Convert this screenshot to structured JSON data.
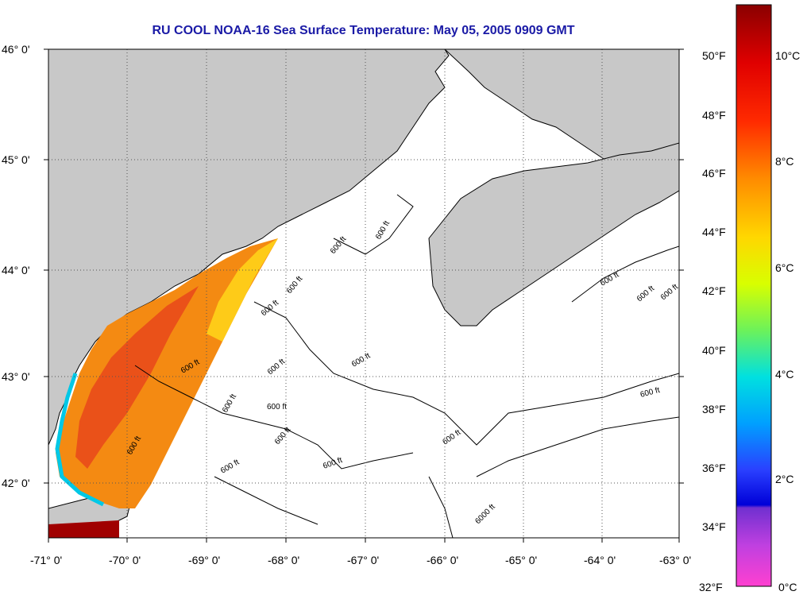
{
  "title": "RU COOL  NOAA-16  Sea Surface Temperature:  May 05, 2005 0909 GMT",
  "colors": {
    "land": "#c8c8c8",
    "sea_no_data": "#ffffff",
    "title_text": "#1a1aa6"
  },
  "axes": {
    "lat_labels": [
      "46° 0'",
      "45° 0'",
      "44° 0'",
      "43° 0'",
      "42° 0'"
    ],
    "lon_labels": [
      "-71° 0'",
      "-70° 0'",
      "-69° 0'",
      "-68° 0'",
      "-67° 0'",
      "-66° 0'",
      "-65° 0'",
      "-64° 0'",
      "-63° 0'"
    ]
  },
  "contour_label": "600 ft",
  "deep_contour_label": "6000 ft",
  "colorbar": {
    "fahrenheit_labels": [
      "50°F",
      "48°F",
      "46°F",
      "44°F",
      "42°F",
      "40°F",
      "38°F",
      "36°F",
      "34°F",
      "32°F"
    ],
    "celsius_labels": [
      "10°C",
      "8°C",
      "6°C",
      "4°C",
      "2°C",
      "0°C"
    ]
  }
}
